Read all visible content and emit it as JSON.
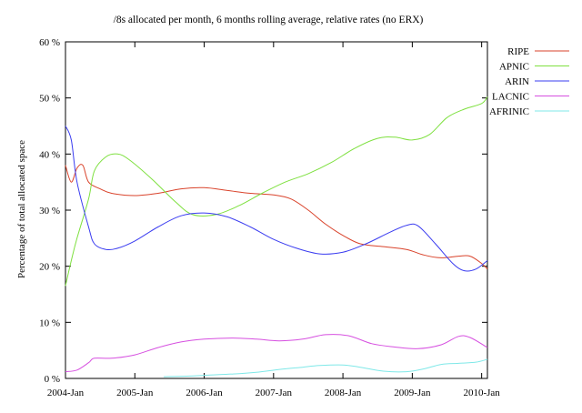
{
  "chart_data": {
    "type": "line",
    "title": "/8s allocated per month, 6 months rolling average, relative rates (no ERX)",
    "xlabel": "",
    "ylabel": "Percentage of total allocated space",
    "ylim": [
      0,
      60
    ],
    "xlim": [
      "2004-01",
      "2010-02"
    ],
    "y_ticks": [
      "0 %",
      "10 %",
      "20 %",
      "30 %",
      "40 %",
      "50 %",
      "60 %"
    ],
    "x_ticks": [
      "2004-Jan",
      "2005-Jan",
      "2006-Jan",
      "2007-Jan",
      "2008-Jan",
      "2009-Jan",
      "2010-Jan"
    ],
    "legend_position": "top-right",
    "grid": false,
    "series": [
      {
        "name": "RIPE",
        "color": "#d9432b",
        "points": [
          [
            "2004-01",
            38
          ],
          [
            "2004-02",
            35
          ],
          [
            "2004-03",
            37.5
          ],
          [
            "2004-04",
            38
          ],
          [
            "2004-05",
            35
          ],
          [
            "2004-07",
            33.8
          ],
          [
            "2004-09",
            33
          ],
          [
            "2005-01",
            32.6
          ],
          [
            "2005-05",
            33
          ],
          [
            "2005-09",
            33.8
          ],
          [
            "2006-01",
            34
          ],
          [
            "2006-05",
            33.5
          ],
          [
            "2006-09",
            33
          ],
          [
            "2007-01",
            32.7
          ],
          [
            "2007-04",
            32
          ],
          [
            "2007-07",
            30
          ],
          [
            "2007-10",
            27.5
          ],
          [
            "2008-01",
            25.5
          ],
          [
            "2008-04",
            24
          ],
          [
            "2008-08",
            23.5
          ],
          [
            "2008-12",
            23
          ],
          [
            "2009-03",
            22
          ],
          [
            "2009-06",
            21.5
          ],
          [
            "2009-09",
            21.8
          ],
          [
            "2009-11",
            21.8
          ],
          [
            "2010-01",
            20.5
          ],
          [
            "2010-02",
            19.5
          ]
        ]
      },
      {
        "name": "APNIC",
        "color": "#7ee03f",
        "points": [
          [
            "2004-01",
            16.5
          ],
          [
            "2004-02",
            21
          ],
          [
            "2004-03",
            25
          ],
          [
            "2004-05",
            32
          ],
          [
            "2004-06",
            37
          ],
          [
            "2004-08",
            39.5
          ],
          [
            "2004-10",
            40
          ],
          [
            "2004-12",
            39
          ],
          [
            "2005-04",
            35.5
          ],
          [
            "2005-08",
            31.5
          ],
          [
            "2005-11",
            29.2
          ],
          [
            "2006-03",
            29.2
          ],
          [
            "2006-07",
            30.8
          ],
          [
            "2006-11",
            33
          ],
          [
            "2007-03",
            35
          ],
          [
            "2007-07",
            36.5
          ],
          [
            "2007-11",
            38.5
          ],
          [
            "2008-03",
            41
          ],
          [
            "2008-07",
            42.8
          ],
          [
            "2008-10",
            43
          ],
          [
            "2009-01",
            42.5
          ],
          [
            "2009-04",
            43.5
          ],
          [
            "2009-07",
            46.5
          ],
          [
            "2009-10",
            48
          ],
          [
            "2010-01",
            49
          ],
          [
            "2010-02",
            50.2
          ]
        ]
      },
      {
        "name": "ARIN",
        "color": "#3a3cf0",
        "points": [
          [
            "2004-01",
            45
          ],
          [
            "2004-02",
            42.5
          ],
          [
            "2004-03",
            35
          ],
          [
            "2004-05",
            27
          ],
          [
            "2004-06",
            24
          ],
          [
            "2004-08",
            23
          ],
          [
            "2004-10",
            23.2
          ],
          [
            "2005-01",
            24.5
          ],
          [
            "2005-05",
            27
          ],
          [
            "2005-09",
            29
          ],
          [
            "2006-01",
            29.5
          ],
          [
            "2006-05",
            28.8
          ],
          [
            "2006-09",
            27
          ],
          [
            "2007-01",
            24.8
          ],
          [
            "2007-05",
            23.2
          ],
          [
            "2007-09",
            22.2
          ],
          [
            "2008-01",
            22.5
          ],
          [
            "2008-05",
            24
          ],
          [
            "2008-09",
            26
          ],
          [
            "2008-12",
            27.3
          ],
          [
            "2009-02",
            27.2
          ],
          [
            "2009-05",
            24
          ],
          [
            "2009-08",
            20.5
          ],
          [
            "2009-10",
            19.2
          ],
          [
            "2009-12",
            19.5
          ],
          [
            "2010-02",
            21
          ]
        ]
      },
      {
        "name": "LACNIC",
        "color": "#d64fe0",
        "points": [
          [
            "2004-01",
            1.2
          ],
          [
            "2004-03",
            1.5
          ],
          [
            "2004-05",
            2.8
          ],
          [
            "2004-06",
            3.6
          ],
          [
            "2004-09",
            3.6
          ],
          [
            "2005-01",
            4.2
          ],
          [
            "2005-05",
            5.5
          ],
          [
            "2005-09",
            6.5
          ],
          [
            "2006-01",
            7
          ],
          [
            "2006-06",
            7.2
          ],
          [
            "2006-10",
            7
          ],
          [
            "2007-02",
            6.7
          ],
          [
            "2007-06",
            7
          ],
          [
            "2007-10",
            7.8
          ],
          [
            "2008-02",
            7.6
          ],
          [
            "2008-06",
            6.2
          ],
          [
            "2008-10",
            5.6
          ],
          [
            "2009-02",
            5.3
          ],
          [
            "2009-06",
            6
          ],
          [
            "2009-09",
            7.5
          ],
          [
            "2009-11",
            7.3
          ],
          [
            "2010-02",
            5.5
          ]
        ]
      },
      {
        "name": "AFRINIC",
        "color": "#7fe8e8",
        "points": [
          [
            "2005-06",
            0.3
          ],
          [
            "2005-10",
            0.4
          ],
          [
            "2006-02",
            0.6
          ],
          [
            "2006-06",
            0.8
          ],
          [
            "2006-10",
            1.1
          ],
          [
            "2007-02",
            1.6
          ],
          [
            "2007-06",
            2
          ],
          [
            "2007-09",
            2.3
          ],
          [
            "2008-01",
            2.4
          ],
          [
            "2008-04",
            2
          ],
          [
            "2008-08",
            1.3
          ],
          [
            "2008-12",
            1.2
          ],
          [
            "2009-03",
            1.7
          ],
          [
            "2009-06",
            2.5
          ],
          [
            "2009-09",
            2.7
          ],
          [
            "2009-12",
            2.9
          ],
          [
            "2010-02",
            3.4
          ]
        ]
      }
    ]
  }
}
